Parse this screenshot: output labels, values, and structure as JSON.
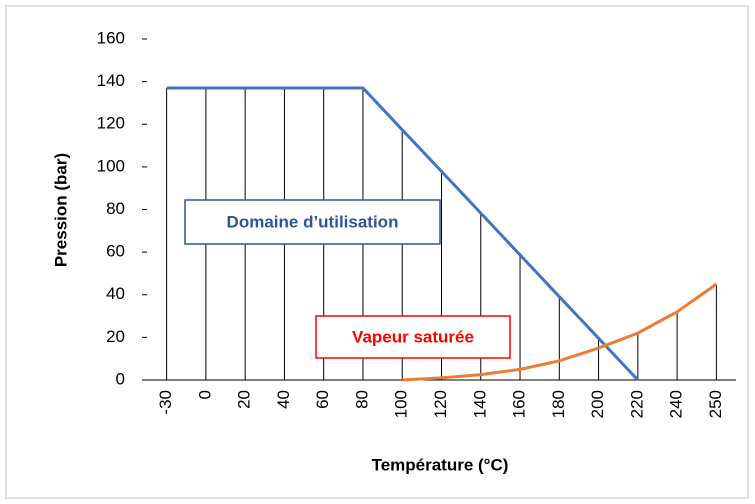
{
  "chart_data": {
    "type": "line",
    "x_label": "Température (°C)",
    "y_label": "Pression (bar)",
    "categories": [
      "-30",
      "0",
      "20",
      "40",
      "60",
      "80",
      "100",
      "120",
      "140",
      "160",
      "180",
      "200",
      "220",
      "240",
      "250"
    ],
    "series": [
      {
        "color": "#4472c4",
        "values": [
          137,
          137,
          137,
          137,
          137,
          137,
          117.4,
          97.9,
          78.3,
          58.7,
          39.1,
          19.6,
          0,
          null,
          null
        ]
      },
      {
        "color": "#ed7d31",
        "values": [
          null,
          null,
          null,
          null,
          null,
          null,
          0,
          1,
          2.5,
          5,
          9,
          15,
          22,
          32,
          45
        ]
      }
    ],
    "drop_lines": true,
    "ylim": [
      0,
      160
    ],
    "yticks": [
      0,
      20,
      40,
      60,
      80,
      100,
      120,
      140,
      160
    ],
    "annotations": [
      {
        "text": "Domaine d’utilisation",
        "color": "#2f5597"
      },
      {
        "text": "Vapeur saturée",
        "color": "#ff0000"
      }
    ]
  }
}
